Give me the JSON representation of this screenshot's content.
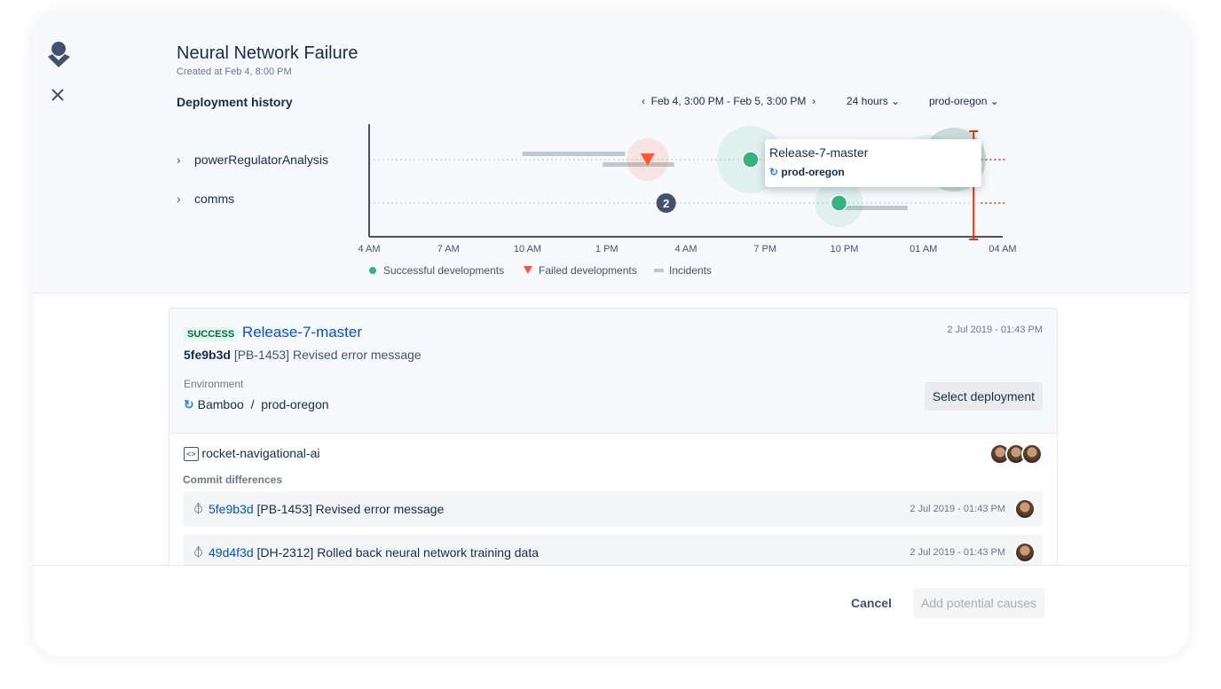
{
  "header": {
    "title": "Neural Network Failure",
    "created": "Created at Feb 4, 8:00 PM",
    "section": "Deployment history",
    "range": "Feb 4, 3:00 PM - Feb 5, 3:00 PM",
    "period": "24 hours",
    "environment": "prod-oregon"
  },
  "lanes": [
    {
      "label": "powerRegulatorAnalysis"
    },
    {
      "label": "comms"
    }
  ],
  "chart_data": {
    "type": "scatter",
    "x_ticks": [
      "4 AM",
      "7 AM",
      "10 AM",
      "1 PM",
      "4 AM",
      "7 PM",
      "10 PM",
      "01 AM",
      "04 AM"
    ],
    "x_range_hours": [
      0,
      24
    ],
    "lanes": [
      "powerRegulatorAnalysis",
      "comms"
    ],
    "events": [
      {
        "lane": 0,
        "hour": 10.55,
        "kind": "failed"
      },
      {
        "lane": 0,
        "hour": 14.45,
        "kind": "success"
      },
      {
        "lane": 0,
        "hour": 22.15,
        "kind": "success-cluster"
      },
      {
        "lane": 1,
        "hour": 11.25,
        "kind": "group",
        "count": "2"
      },
      {
        "lane": 1,
        "hour": 17.8,
        "kind": "success"
      }
    ],
    "incidents": [
      {
        "lane": 0,
        "start": 5.8,
        "end": 9.7
      },
      {
        "lane": 0,
        "start": 8.85,
        "end": 11.55
      },
      {
        "lane": 1,
        "start": 17.8,
        "end": 20.4
      }
    ],
    "marker_hour": 22.9,
    "legend": [
      "Successful developments",
      "Failed developments",
      "Incidents"
    ],
    "colors": {
      "success": "#36b37e",
      "failed": "#ff5630",
      "incident": "#c1c7d0",
      "marker": "#de350b",
      "group": "#42526e"
    }
  },
  "tooltip": {
    "title": "Release-7-master",
    "env": "prod-oregon"
  },
  "deployment": {
    "status": "SUCCESS",
    "name": "Release-7-master",
    "date": "2 Jul 2019 - 01:43 PM",
    "commit": "5fe9b3d",
    "message": "[PB-1453] Revised error message",
    "env_label": "Environment",
    "tool": "Bamboo",
    "sep": "/",
    "env": "prod-oregon",
    "select": "Select deployment"
  },
  "repo": {
    "name": "rocket-navigational-ai",
    "diff_label": "Commit differences",
    "commits": [
      {
        "hash": "5fe9b3d",
        "message": "[PB-1453] Revised error message",
        "date": "2 Jul 2019 - 01:43 PM"
      },
      {
        "hash": "49d4f3d",
        "message": "[DH-2312] Rolled back neural network training data",
        "date": "2 Jul 2019 - 01:43 PM"
      }
    ]
  },
  "footer": {
    "cancel": "Cancel",
    "add": "Add potential causes"
  }
}
